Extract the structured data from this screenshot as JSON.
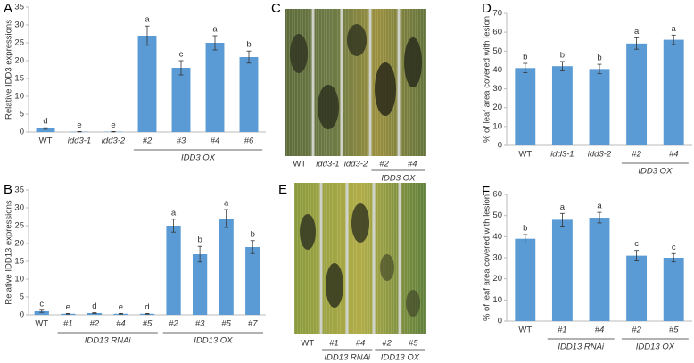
{
  "chart_data": [
    {
      "type": "bar",
      "panel": "A",
      "ylabel": "Relative IDD3 expressions",
      "color": "#5b9bd5",
      "categories": [
        "WT",
        "idd3-1",
        "idd3-2",
        "#2",
        "#3",
        "#4",
        "#6"
      ],
      "values": [
        1,
        0.1,
        0.1,
        27,
        18,
        25,
        21
      ],
      "errors": [
        0.2,
        0.05,
        0.05,
        2.7,
        2,
        2,
        1.7
      ],
      "annotations": [
        "d",
        "e",
        "e",
        "a",
        "c",
        "a",
        "b"
      ],
      "groups": [
        {
          "label": "IDD3 OX",
          "from": 3,
          "to": 6
        }
      ],
      "ylim": [
        0,
        35
      ],
      "yticks": [
        0,
        5,
        10,
        15,
        20,
        25,
        30,
        35
      ]
    },
    {
      "type": "bar",
      "panel": "B",
      "ylabel": "Relative IDD13 expressions",
      "color": "#5b9bd5",
      "categories": [
        "WT",
        "#1",
        "#2",
        "#4",
        "#5",
        "#2",
        "#3",
        "#5",
        "#7"
      ],
      "values": [
        1,
        0.3,
        0.5,
        0.3,
        0.3,
        25,
        17,
        27,
        19
      ],
      "errors": [
        0.3,
        0.1,
        0.1,
        0.1,
        0.1,
        1.8,
        2.2,
        2.5,
        1.8
      ],
      "annotations": [
        "c",
        "e",
        "d",
        "e",
        "d",
        "a",
        "b",
        "a",
        "b"
      ],
      "groups": [
        {
          "label": "IDD13 RNAi",
          "from": 1,
          "to": 4
        },
        {
          "label": "IDD13 OX",
          "from": 5,
          "to": 8
        }
      ],
      "ylim": [
        0,
        35
      ],
      "yticks": [
        0,
        5,
        10,
        15,
        20,
        25,
        30,
        35
      ]
    },
    {
      "type": "bar",
      "panel": "D",
      "ylabel": "% of leaf area covered with lesion",
      "color": "#5b9bd5",
      "categories": [
        "WT",
        "idd3-1",
        "idd3-2",
        "#2",
        "#4"
      ],
      "values": [
        41,
        42,
        40.5,
        54,
        56
      ],
      "errors": [
        2.5,
        2.5,
        2.5,
        3,
        2.5
      ],
      "annotations": [
        "b",
        "b",
        "b",
        "a",
        "a"
      ],
      "groups": [
        {
          "label": "IDD3 OX",
          "from": 3,
          "to": 4
        }
      ],
      "ylim": [
        0,
        70
      ],
      "yticks": [
        0,
        10,
        20,
        30,
        40,
        50,
        60,
        70
      ]
    },
    {
      "type": "bar",
      "panel": "F",
      "ylabel": "% of leaf area covered with lesion",
      "color": "#5b9bd5",
      "categories": [
        "WT",
        "#1",
        "#4",
        "#2",
        "#5"
      ],
      "values": [
        39,
        48,
        49,
        31,
        30
      ],
      "errors": [
        2,
        3,
        2.5,
        2.5,
        2
      ],
      "annotations": [
        "b",
        "a",
        "a",
        "c",
        "c"
      ],
      "groups": [
        {
          "label": "IDD13 RNAi",
          "from": 1,
          "to": 2
        },
        {
          "label": "IDD13 OX",
          "from": 3,
          "to": 4
        }
      ],
      "ylim": [
        0,
        60
      ],
      "yticks": [
        0,
        10,
        20,
        30,
        40,
        50,
        60
      ]
    }
  ],
  "photos": [
    {
      "panel": "C",
      "labels": [
        "WT",
        "idd3-1",
        "idd3-2",
        "#2",
        "#4"
      ],
      "groups": [
        {
          "label": "IDD3 OX",
          "from": 3,
          "to": 4
        }
      ]
    },
    {
      "panel": "E",
      "labels": [
        "WT",
        "#1",
        "#4",
        "#2",
        "#5"
      ],
      "groups": [
        {
          "label": "IDD13 RNAi",
          "from": 1,
          "to": 2
        },
        {
          "label": "IDD13 OX",
          "from": 3,
          "to": 4
        }
      ]
    }
  ]
}
